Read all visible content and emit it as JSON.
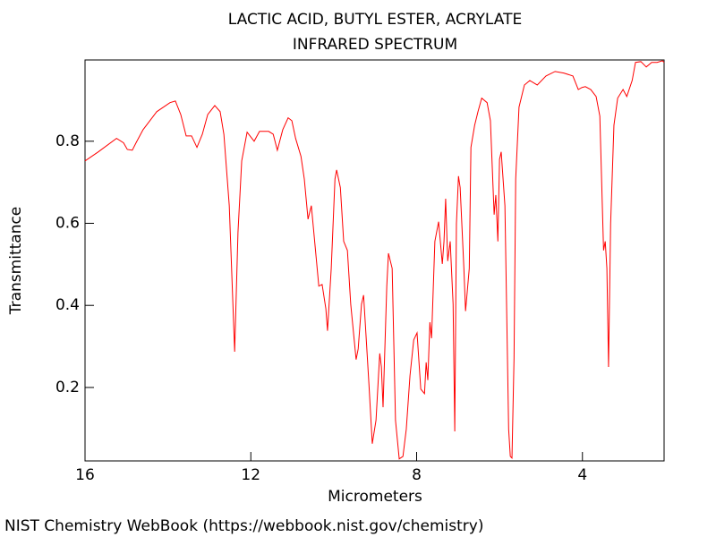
{
  "chart_data": {
    "type": "line",
    "title": "LACTIC ACID, BUTYL ESTER, ACRYLATE",
    "subtitle": "INFRARED SPECTRUM",
    "x_label": "Micrometers",
    "y_label": "Transmittance",
    "source": "NIST Chemistry WebBook (https://webbook.nist.gov/chemistry)",
    "xlim": [
      16,
      2.03
    ],
    "ylim": [
      0.021,
      0.998
    ],
    "xticks": [
      16,
      12,
      8,
      4
    ],
    "yticks": [
      0.2,
      0.4,
      0.6,
      0.8
    ],
    "grid": false,
    "x": [
      16.0,
      15.68,
      15.24,
      15.07,
      14.98,
      14.86,
      14.77,
      14.6,
      14.27,
      13.95,
      13.82,
      13.69,
      13.56,
      13.43,
      13.3,
      13.17,
      13.04,
      12.87,
      12.74,
      12.65,
      12.52,
      12.39,
      12.31,
      12.22,
      12.09,
      11.92,
      11.79,
      11.57,
      11.46,
      11.36,
      11.23,
      11.1,
      11.01,
      10.92,
      10.79,
      10.71,
      10.62,
      10.54,
      10.45,
      10.36,
      10.28,
      10.19,
      10.15,
      10.06,
      9.97,
      9.93,
      9.84,
      9.76,
      9.67,
      9.59,
      9.46,
      9.41,
      9.33,
      9.28,
      9.24,
      9.15,
      9.07,
      8.98,
      8.89,
      8.85,
      8.81,
      8.72,
      8.68,
      8.59,
      8.51,
      8.42,
      8.33,
      8.25,
      8.16,
      8.07,
      7.99,
      7.9,
      7.81,
      7.77,
      7.73,
      7.68,
      7.64,
      7.56,
      7.47,
      7.38,
      7.34,
      7.3,
      7.25,
      7.19,
      7.12,
      7.08,
      7.04,
      6.99,
      6.95,
      6.86,
      6.82,
      6.73,
      6.69,
      6.6,
      6.52,
      6.43,
      6.3,
      6.22,
      6.13,
      6.09,
      6.04,
      6.0,
      5.96,
      5.87,
      5.78,
      5.74,
      5.7,
      5.65,
      5.61,
      5.53,
      5.4,
      5.27,
      5.09,
      4.88,
      4.66,
      4.45,
      4.23,
      4.1,
      4.01,
      3.93,
      3.8,
      3.67,
      3.58,
      3.49,
      3.45,
      3.41,
      3.37,
      3.32,
      3.24,
      3.15,
      3.02,
      2.93,
      2.8,
      2.72,
      2.59,
      2.46,
      2.33,
      2.2,
      2.07,
      2.03
    ],
    "series": [
      {
        "color": "#ff0000",
        "values": [
          0.752,
          0.774,
          0.807,
          0.796,
          0.78,
          0.778,
          0.796,
          0.828,
          0.872,
          0.894,
          0.898,
          0.865,
          0.813,
          0.813,
          0.785,
          0.817,
          0.865,
          0.887,
          0.872,
          0.817,
          0.643,
          0.287,
          0.578,
          0.752,
          0.822,
          0.8,
          0.824,
          0.824,
          0.817,
          0.778,
          0.828,
          0.857,
          0.85,
          0.807,
          0.763,
          0.708,
          0.61,
          0.643,
          0.545,
          0.447,
          0.451,
          0.392,
          0.338,
          0.49,
          0.708,
          0.73,
          0.687,
          0.556,
          0.534,
          0.403,
          0.268,
          0.294,
          0.403,
          0.425,
          0.359,
          0.207,
          0.063,
          0.12,
          0.283,
          0.25,
          0.152,
          0.447,
          0.527,
          0.49,
          0.12,
          0.026,
          0.032,
          0.098,
          0.229,
          0.316,
          0.333,
          0.196,
          0.185,
          0.261,
          0.218,
          0.359,
          0.32,
          0.556,
          0.604,
          0.501,
          0.556,
          0.66,
          0.508,
          0.556,
          0.403,
          0.093,
          0.599,
          0.715,
          0.687,
          0.49,
          0.386,
          0.49,
          0.785,
          0.839,
          0.872,
          0.905,
          0.894,
          0.85,
          0.621,
          0.669,
          0.556,
          0.756,
          0.774,
          0.643,
          0.098,
          0.032,
          0.028,
          0.272,
          0.708,
          0.883,
          0.937,
          0.948,
          0.937,
          0.959,
          0.97,
          0.966,
          0.959,
          0.926,
          0.931,
          0.933,
          0.926,
          0.909,
          0.861,
          0.534,
          0.556,
          0.49,
          0.25,
          0.599,
          0.839,
          0.905,
          0.926,
          0.909,
          0.948,
          0.992,
          0.994,
          0.981,
          0.992,
          0.992,
          0.996,
          0.992
        ]
      }
    ]
  }
}
